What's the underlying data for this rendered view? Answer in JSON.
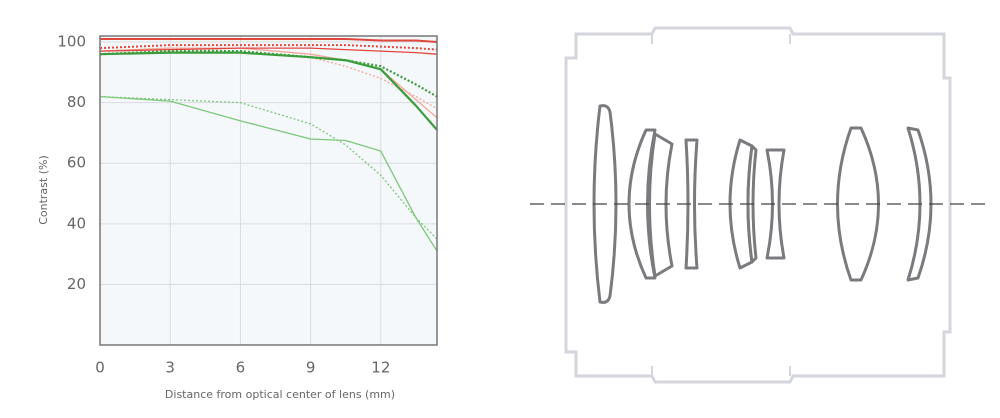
{
  "chart_data": {
    "type": "line",
    "y_label": "Contrast (%)",
    "x_label": "Distance from optical center of lens (mm)",
    "x": [
      0,
      3,
      6,
      9,
      10.5,
      12,
      13.5,
      14.4
    ],
    "xlim": [
      0,
      14.4
    ],
    "xticks": [
      0,
      3,
      6,
      9,
      12
    ],
    "ylim": [
      0,
      102
    ],
    "yticks": [
      20,
      40,
      60,
      80,
      100
    ],
    "grid": true,
    "series": [
      {
        "color": "#f3a79a",
        "style": "solid",
        "width": 1.3,
        "values": [
          97,
          98,
          98,
          96,
          94,
          91,
          81,
          75
        ]
      },
      {
        "color": "#f3a79a",
        "style": "dotted",
        "width": 1.3,
        "values": [
          97,
          98,
          97,
          95,
          92,
          88,
          82,
          78
        ]
      },
      {
        "color": "#e0463c",
        "style": "solid",
        "width": 1.3,
        "values": [
          97,
          97.5,
          98,
          98,
          97.5,
          97,
          96.5,
          96
        ]
      },
      {
        "color": "#e0463c",
        "style": "dotted",
        "width": 2,
        "values": [
          98,
          99,
          99,
          99,
          99,
          98.5,
          98,
          97.5
        ]
      },
      {
        "color": "#e0463c",
        "style": "solid",
        "width": 2,
        "values": [
          101,
          101,
          101,
          101,
          101,
          100.5,
          100.5,
          100
        ]
      },
      {
        "color": "#7cc77a",
        "style": "dotted",
        "width": 1.3,
        "values": [
          82,
          81,
          80,
          73,
          66,
          56,
          42,
          35
        ]
      },
      {
        "color": "#7cc77a",
        "style": "solid",
        "width": 1.3,
        "values": [
          82,
          80.5,
          74,
          68,
          67.5,
          64,
          42,
          31
        ]
      },
      {
        "color": "#3a9c3a",
        "style": "dotted",
        "width": 2.2,
        "values": [
          96,
          97,
          97,
          95,
          94,
          92,
          86,
          82
        ]
      },
      {
        "color": "#3a9c3a",
        "style": "solid",
        "width": 2.2,
        "values": [
          96,
          96.5,
          96.5,
          95,
          94,
          91,
          79,
          71
        ]
      }
    ]
  }
}
